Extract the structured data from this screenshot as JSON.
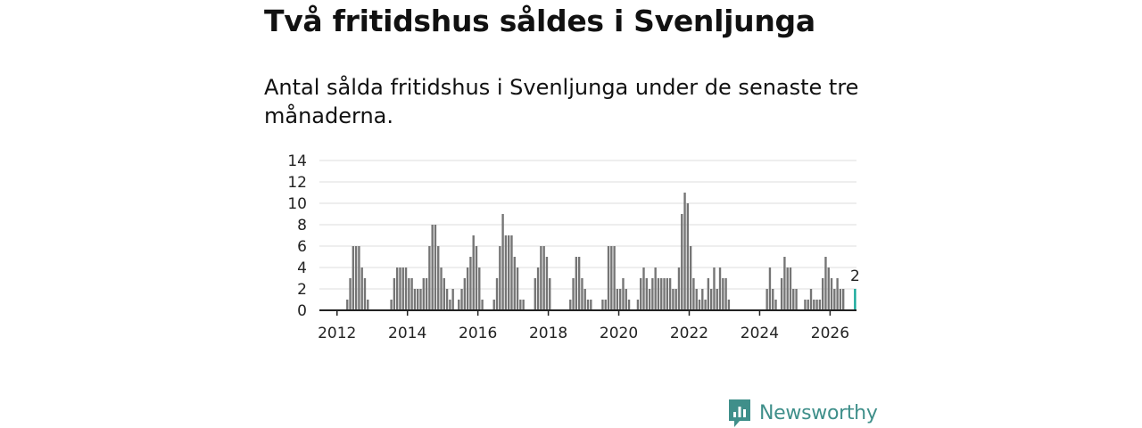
{
  "title": "Två fritidshus såldes i Svenljunga",
  "subtitle": "Antal sålda fritidshus i Svenljunga under de senaste tre månaderna.",
  "brand": {
    "name": "Newsworthy",
    "color": "#3f8f8a",
    "icon": "newsworthy-logo-icon"
  },
  "colors": {
    "bar": "#757575",
    "highlight": "#14a89a",
    "axis": "#222222",
    "grid": "#dddddd"
  },
  "chart_data": {
    "type": "bar",
    "title": "Två fritidshus såldes i Svenljunga",
    "xlabel": "",
    "ylabel": "",
    "ylim": [
      0,
      14
    ],
    "yticks": [
      "0",
      "2",
      "4",
      "6",
      "8",
      "10",
      "12",
      "14"
    ],
    "xticks": [
      "2012",
      "2014",
      "2016",
      "2018",
      "2020",
      "2022",
      "2024",
      "2026"
    ],
    "x_start": "2011-07",
    "series": [
      {
        "name": "Antal sålda fritidshus",
        "values": [
          0,
          0,
          0,
          0,
          0,
          0,
          0,
          0,
          0,
          1,
          3,
          6,
          6,
          6,
          4,
          3,
          1,
          0,
          0,
          0,
          0,
          0,
          0,
          0,
          1,
          3,
          4,
          4,
          4,
          4,
          3,
          3,
          2,
          2,
          2,
          3,
          3,
          6,
          8,
          8,
          6,
          4,
          3,
          2,
          1,
          2,
          0,
          1,
          2,
          3,
          4,
          5,
          7,
          6,
          4,
          1,
          0,
          0,
          0,
          1,
          3,
          6,
          9,
          7,
          7,
          7,
          5,
          4,
          1,
          1,
          0,
          0,
          0,
          3,
          4,
          6,
          6,
          5,
          3,
          0,
          0,
          0,
          0,
          0,
          0,
          1,
          3,
          5,
          5,
          3,
          2,
          1,
          1,
          0,
          0,
          0,
          1,
          1,
          6,
          6,
          6,
          2,
          2,
          3,
          2,
          1,
          0,
          0,
          1,
          3,
          4,
          3,
          2,
          3,
          4,
          3,
          3,
          3,
          3,
          3,
          2,
          2,
          4,
          9,
          11,
          10,
          6,
          3,
          2,
          1,
          2,
          1,
          3,
          2,
          4,
          2,
          4,
          3,
          3,
          1,
          0,
          0,
          0,
          0,
          0,
          0,
          0,
          0,
          0,
          0,
          0,
          0,
          2,
          4,
          2,
          1,
          0,
          3,
          5,
          4,
          4,
          2,
          2,
          0,
          0,
          1,
          1,
          2,
          1,
          1,
          1,
          3,
          5,
          4,
          3,
          2,
          3,
          2,
          2,
          0,
          0,
          0,
          2
        ],
        "last_label": "2"
      }
    ]
  }
}
